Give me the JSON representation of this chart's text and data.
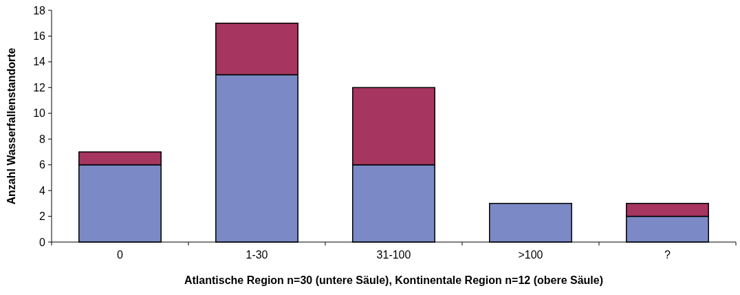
{
  "chart_data": {
    "type": "bar",
    "stacked": true,
    "xlabel": "Atlantische Region n=30 (untere Säule), Kontinentale Region n=12 (obere Säule)",
    "ylabel": "Anzahl Wasserfallenstandorte",
    "categories": [
      "0",
      "1-30",
      "31-100",
      ">100",
      "?"
    ],
    "series": [
      {
        "color": "#7b8ac6",
        "values": [
          6,
          13,
          6,
          3,
          2
        ]
      },
      {
        "color": "#a6365f",
        "values": [
          1,
          4,
          6,
          0,
          1
        ]
      }
    ],
    "ylim": [
      0,
      18
    ],
    "yticks": [
      0,
      2,
      4,
      6,
      8,
      10,
      12,
      14,
      16,
      18
    ],
    "grid": false
  }
}
